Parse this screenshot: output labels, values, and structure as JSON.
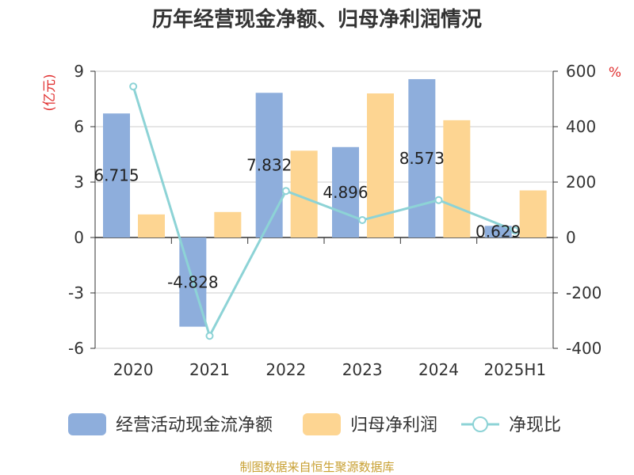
{
  "title": "历年经营现金净额、归母净利润情况",
  "source": "制图数据来自恒生聚源数据库",
  "colors": {
    "cash": "#8eaedc",
    "profit": "#fdd592",
    "ratio": "#8dd3d6",
    "unit": "#e03030",
    "source": "#c8a032",
    "grid": "#cccccc",
    "axis": "#333333"
  },
  "chart_data": {
    "type": "bar",
    "categories": [
      "2020",
      "2021",
      "2022",
      "2023",
      "2024",
      "2025H1"
    ],
    "series": [
      {
        "name": "经营活动现金流净额",
        "type": "bar",
        "axis": "left",
        "values": [
          6.715,
          -4.828,
          7.832,
          4.896,
          8.573,
          0.629
        ],
        "labels": [
          "6.715",
          "-4.828",
          "7.832",
          "4.896",
          "8.573",
          "0.629"
        ]
      },
      {
        "name": "归母净利润",
        "type": "bar",
        "axis": "left",
        "values": [
          1.25,
          1.38,
          4.7,
          7.8,
          6.35,
          2.55
        ]
      },
      {
        "name": "净现比",
        "type": "line",
        "axis": "right",
        "values": [
          545,
          -355,
          168,
          63,
          135,
          25
        ]
      }
    ],
    "left_axis": {
      "label": "(亿元)",
      "min": -6,
      "max": 9,
      "ticks": [
        "9",
        "6",
        "3",
        "0",
        "-3",
        "-6"
      ]
    },
    "right_axis": {
      "label": "%",
      "min": -400,
      "max": 600,
      "ticks": [
        "600",
        "400",
        "200",
        "0",
        "-200",
        "-400"
      ]
    },
    "grid": true,
    "legend_position": "bottom"
  }
}
